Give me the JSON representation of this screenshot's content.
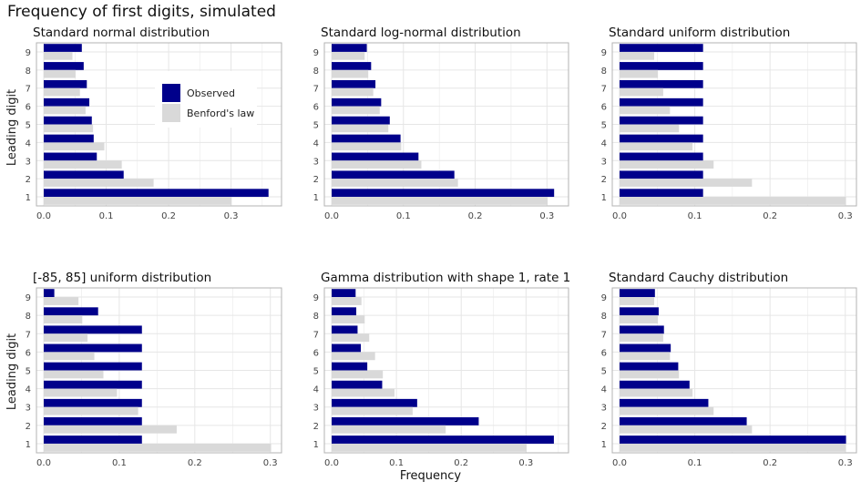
{
  "title": "Frequency of first digits, simulated",
  "ylabel": "Leading digit",
  "xlabel": "Frequency",
  "legend": {
    "observed": "Observed",
    "benford": "Benford's law",
    "placement": "inside top-right of first panel"
  },
  "colors": {
    "observed": "#00008B",
    "benford": "#d9d9d9",
    "grid": "#e6e6e6",
    "frame": "#b3b3b3"
  },
  "chart_data": [
    {
      "type": "bar",
      "title": "Standard normal distribution",
      "categories": [
        "1",
        "2",
        "3",
        "4",
        "5",
        "6",
        "7",
        "8",
        "9"
      ],
      "series": [
        {
          "name": "Observed",
          "values": [
            0.36,
            0.128,
            0.085,
            0.08,
            0.077,
            0.073,
            0.069,
            0.064,
            0.061
          ]
        },
        {
          "name": "Benford's law",
          "values": [
            0.301,
            0.176,
            0.125,
            0.097,
            0.079,
            0.067,
            0.058,
            0.051,
            0.046
          ]
        }
      ],
      "xticks": [
        "0.0",
        "0.1",
        "0.2",
        "0.3"
      ],
      "xlim": [
        0,
        0.375
      ]
    },
    {
      "type": "bar",
      "title": "Standard log-normal distribution",
      "categories": [
        "1",
        "2",
        "3",
        "4",
        "5",
        "6",
        "7",
        "8",
        "9"
      ],
      "series": [
        {
          "name": "Observed",
          "values": [
            0.31,
            0.171,
            0.121,
            0.096,
            0.081,
            0.069,
            0.061,
            0.055,
            0.049
          ]
        },
        {
          "name": "Benford's law",
          "values": [
            0.301,
            0.176,
            0.125,
            0.097,
            0.079,
            0.067,
            0.058,
            0.051,
            0.046
          ]
        }
      ],
      "xticks": [
        "0.0",
        "0.1",
        "0.2",
        "0.3"
      ],
      "xlim": [
        0,
        0.325
      ]
    },
    {
      "type": "bar",
      "title": "Standard uniform distribution",
      "categories": [
        "1",
        "2",
        "3",
        "4",
        "5",
        "6",
        "7",
        "8",
        "9"
      ],
      "series": [
        {
          "name": "Observed",
          "values": [
            0.111,
            0.111,
            0.111,
            0.111,
            0.111,
            0.111,
            0.111,
            0.111,
            0.111
          ]
        },
        {
          "name": "Benford's law",
          "values": [
            0.301,
            0.176,
            0.125,
            0.097,
            0.079,
            0.067,
            0.058,
            0.051,
            0.046
          ]
        }
      ],
      "xticks": [
        "0.0",
        "0.1",
        "0.2",
        "0.3"
      ],
      "xlim": [
        0,
        0.31
      ]
    },
    {
      "type": "bar",
      "title": "[-85, 85] uniform distribution",
      "categories": [
        "1",
        "2",
        "3",
        "4",
        "5",
        "6",
        "7",
        "8",
        "9"
      ],
      "series": [
        {
          "name": "Observed",
          "values": [
            0.13,
            0.13,
            0.13,
            0.13,
            0.13,
            0.13,
            0.13,
            0.072,
            0.014
          ]
        },
        {
          "name": "Benford's law",
          "values": [
            0.301,
            0.176,
            0.125,
            0.097,
            0.079,
            0.067,
            0.058,
            0.051,
            0.046
          ]
        }
      ],
      "xticks": [
        "0.0",
        "0.1",
        "0.2",
        "0.3"
      ],
      "xlim": [
        0,
        0.31
      ]
    },
    {
      "type": "bar",
      "title": "Gamma distribution with shape 1, rate 1",
      "categories": [
        "1",
        "2",
        "3",
        "4",
        "5",
        "6",
        "7",
        "8",
        "9"
      ],
      "series": [
        {
          "name": "Observed",
          "values": [
            0.343,
            0.227,
            0.132,
            0.078,
            0.055,
            0.045,
            0.04,
            0.038,
            0.037
          ]
        },
        {
          "name": "Benford's law",
          "values": [
            0.301,
            0.176,
            0.125,
            0.097,
            0.079,
            0.067,
            0.058,
            0.051,
            0.046
          ]
        }
      ],
      "xticks": [
        "0.0",
        "0.1",
        "0.2",
        "0.3"
      ],
      "xlim": [
        0,
        0.36
      ]
    },
    {
      "type": "bar",
      "title": "Standard Cauchy distribution",
      "categories": [
        "1",
        "2",
        "3",
        "4",
        "5",
        "6",
        "7",
        "8",
        "9"
      ],
      "series": [
        {
          "name": "Observed",
          "values": [
            0.301,
            0.169,
            0.118,
            0.093,
            0.078,
            0.068,
            0.059,
            0.052,
            0.047
          ]
        },
        {
          "name": "Benford's law",
          "values": [
            0.301,
            0.176,
            0.125,
            0.097,
            0.079,
            0.067,
            0.058,
            0.051,
            0.046
          ]
        }
      ],
      "xticks": [
        "0.0",
        "0.1",
        "0.2",
        "0.3"
      ],
      "xlim": [
        0,
        0.31
      ]
    }
  ]
}
